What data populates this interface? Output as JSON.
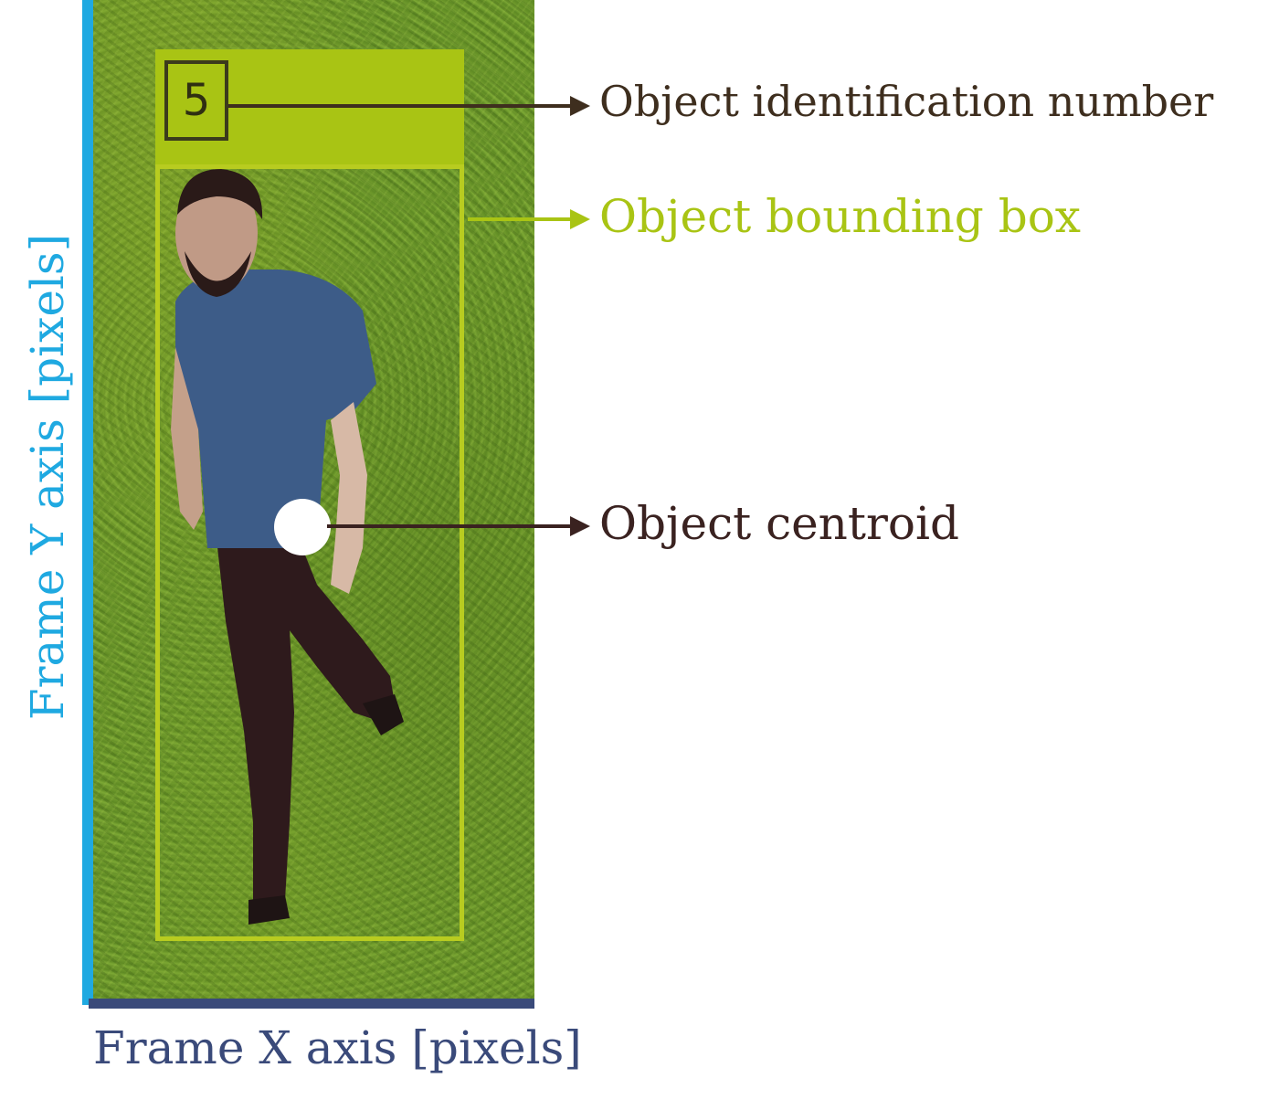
{
  "figure": {
    "frame_label": "person walking on grass",
    "id_number": "5",
    "labels": {
      "identification": "Object identification number",
      "bounding_box": "Object bounding box",
      "centroid": "Object centroid"
    },
    "axes": {
      "y": "Frame Y axis [pixels]",
      "x": "Frame X axis [pixels]"
    }
  },
  "colors": {
    "y_axis": "#1fa9e1",
    "x_axis": "#3a4a7a",
    "bounding_box": "#a9c414",
    "identification": "#3e2e1e",
    "centroid": "#3a2220"
  }
}
